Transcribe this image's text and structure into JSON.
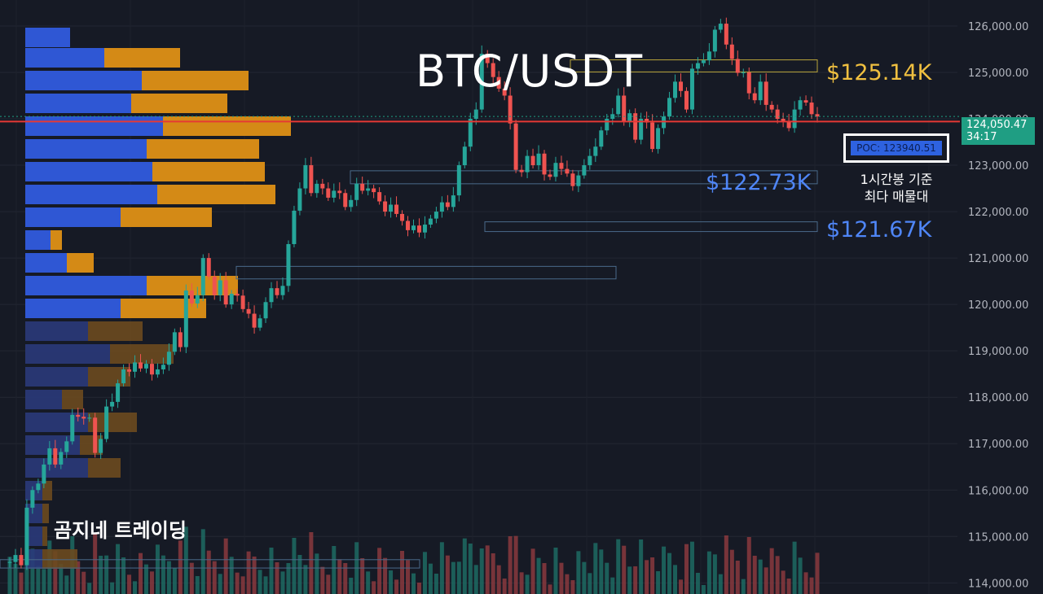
{
  "chart_data": {
    "type": "candlestick",
    "title": "BTC/USDT",
    "y_ticks": [
      114000,
      115000,
      116000,
      117000,
      118000,
      119000,
      120000,
      121000,
      122000,
      123000,
      124000,
      125000,
      126000
    ],
    "y_tick_labels": [
      "114,000.00",
      "115,000.00",
      "116,000.00",
      "117,000.00",
      "118,000.00",
      "119,000.00",
      "120,000.00",
      "121,000.00",
      "122,000.00",
      "123,000.00",
      "124,000.00",
      "125,000.00",
      "126,000.00"
    ],
    "ylim": [
      113760,
      126560
    ],
    "last_price": {
      "value": 124050.47,
      "label": "124,050.47",
      "countdown": "34:17",
      "color": "#1f9e83"
    },
    "poc": {
      "value": 123940.51,
      "label": "POC: 123940.51"
    },
    "annotations": [
      {
        "text": "$125.14K",
        "value": 125140,
        "color": "#f0c040"
      },
      {
        "text": "$122.73K",
        "value": 122730,
        "color": "#4f86f7"
      },
      {
        "text": "$121.67K",
        "value": 121670,
        "color": "#4f86f7"
      }
    ],
    "note": [
      "1시간봉 기준",
      "최다 매물대"
    ],
    "watermark": "곰지네 트레이딩",
    "price_path": [
      114430,
      114450,
      114600,
      114380,
      115620,
      116000,
      116140,
      116550,
      116900,
      116550,
      116820,
      117050,
      117620,
      117580,
      117540,
      117560,
      116800,
      117100,
      117800,
      117900,
      118300,
      118600,
      118550,
      118750,
      118620,
      118720,
      118490,
      118600,
      118700,
      118980,
      119400,
      119080,
      120300,
      120020,
      120200,
      121000,
      120600,
      120200,
      120520,
      120000,
      120230,
      120190,
      119900,
      119800,
      119500,
      119700,
      120050,
      120350,
      120200,
      120400,
      121300,
      122020,
      122500,
      123000,
      122400,
      122600,
      122500,
      122300,
      122450,
      122400,
      122100,
      122250,
      122600,
      122450,
      122500,
      122420,
      122220,
      122000,
      122150,
      121950,
      121800,
      121600,
      121700,
      121550,
      121720,
      121850,
      122000,
      122200,
      122100,
      122350,
      123000,
      123400,
      124000,
      124200,
      125400,
      125200,
      124900,
      124650,
      124500,
      123900,
      122900,
      122850,
      123200,
      123000,
      123250,
      122800,
      122750,
      123050,
      122920,
      122820,
      122550,
      122780,
      123000,
      123200,
      123400,
      123750,
      124000,
      124100,
      124500,
      123950,
      124120,
      123550,
      124000,
      123920,
      123350,
      123800,
      124050,
      124450,
      124800,
      124600,
      124200,
      125080,
      125200,
      125260,
      125450,
      125920,
      126050,
      125600,
      125290,
      124990,
      125000,
      124550,
      124400,
      124800,
      124300,
      124200,
      124000,
      123950,
      123800,
      124200,
      124400,
      124350,
      124100,
      124050
    ]
  }
}
